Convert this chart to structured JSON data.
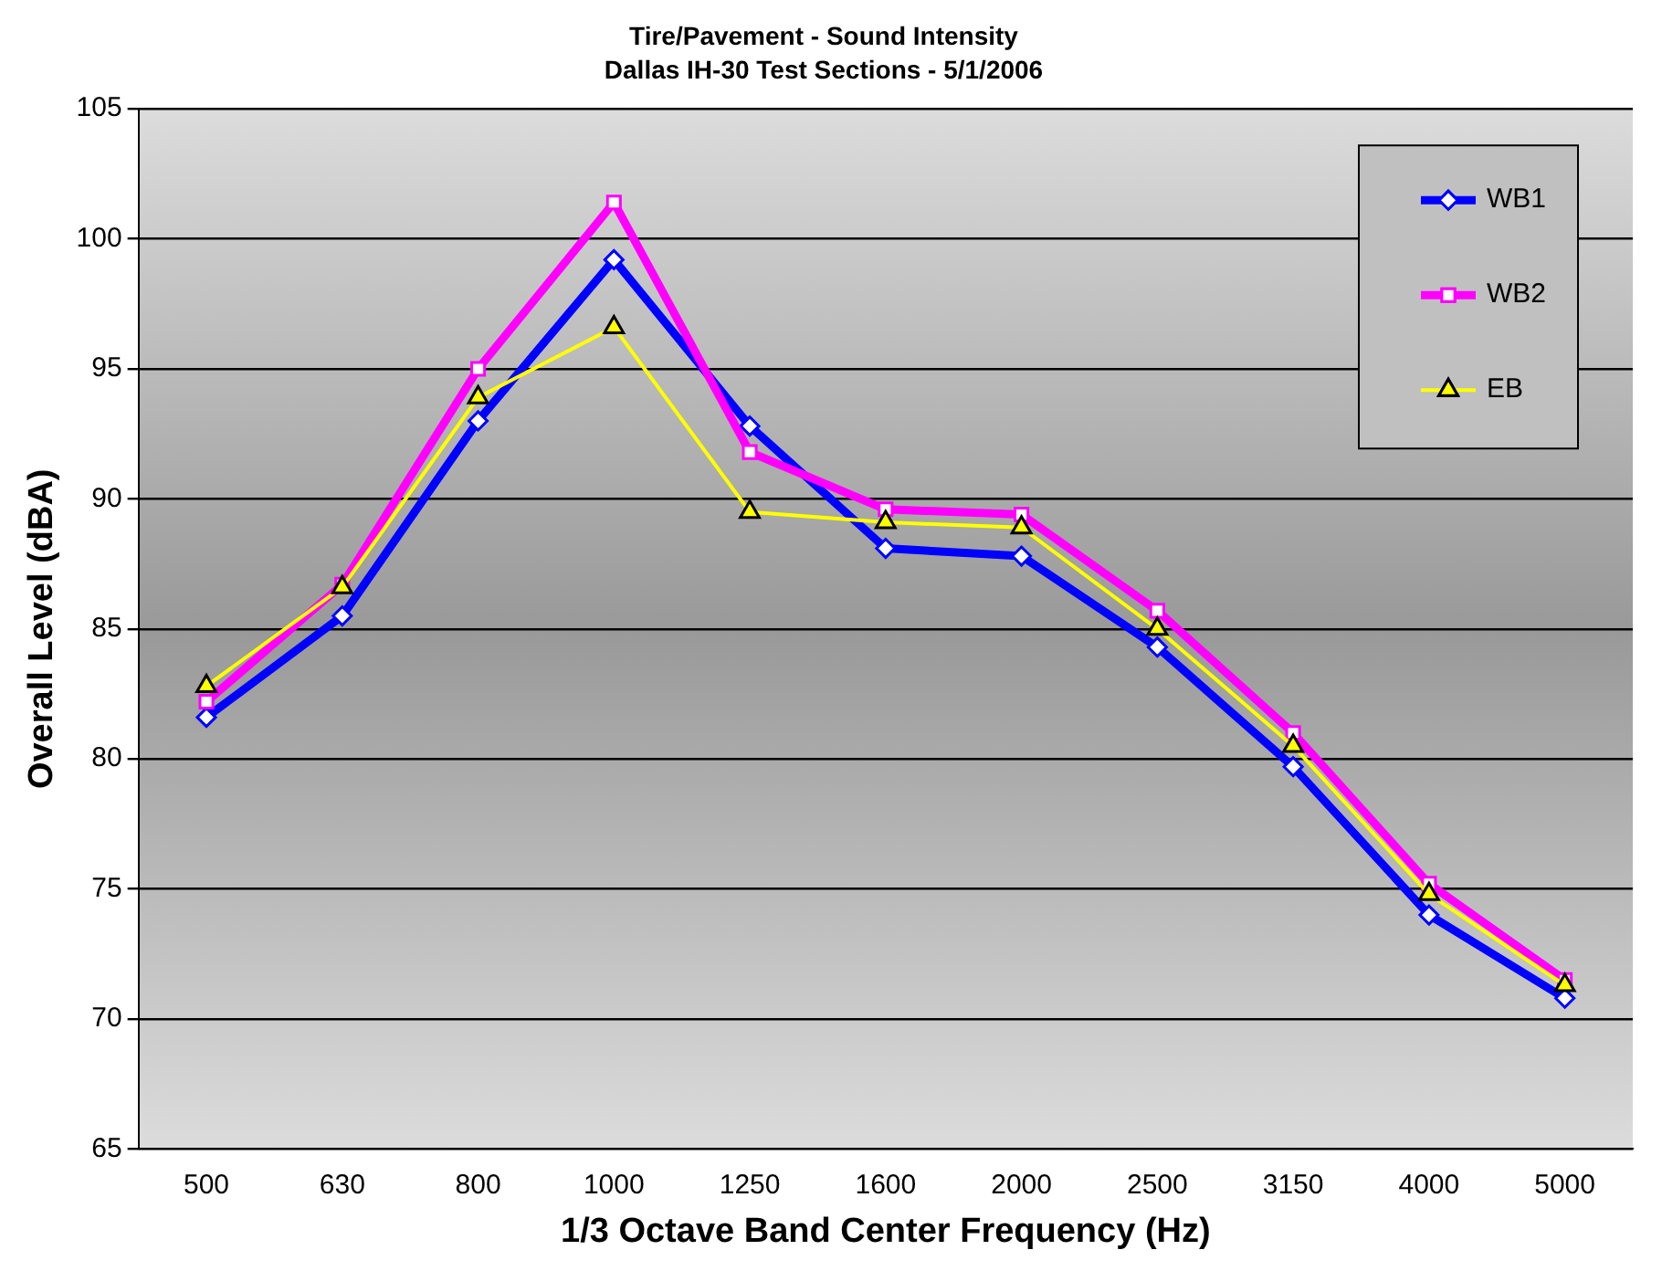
{
  "chart_data": {
    "type": "line",
    "title": "Tire/Pavement - Sound Intensity",
    "subtitle": "Dallas IH-30 Test Sections - 5/1/2006",
    "xlabel": "1/3 Octave Band Center Frequency (Hz)",
    "ylabel": "Overall Level (dBA)",
    "categories": [
      "500",
      "630",
      "800",
      "1000",
      "1250",
      "1600",
      "2000",
      "2500",
      "3150",
      "4000",
      "5000"
    ],
    "series": [
      {
        "name": "WB1",
        "color": "#0000ff",
        "marker": "diamond",
        "values": [
          81.6,
          85.5,
          93.0,
          99.2,
          92.8,
          88.1,
          87.8,
          84.3,
          79.7,
          74.0,
          70.8
        ]
      },
      {
        "name": "WB2",
        "color": "#ff00ff",
        "marker": "square",
        "values": [
          82.2,
          86.7,
          95.0,
          101.4,
          91.8,
          89.6,
          89.4,
          85.7,
          81.0,
          75.2,
          71.5
        ]
      },
      {
        "name": "EB",
        "color": "#ffff00",
        "marker": "triangle",
        "values": [
          82.8,
          86.6,
          93.9,
          96.6,
          89.5,
          89.1,
          88.9,
          85.0,
          80.5,
          74.8,
          71.3
        ]
      }
    ],
    "ylim": [
      65,
      105
    ],
    "yticks": [
      65,
      70,
      75,
      80,
      85,
      90,
      95,
      100,
      105
    ],
    "grid": "y",
    "legend": "top right",
    "line_style": "solid"
  }
}
